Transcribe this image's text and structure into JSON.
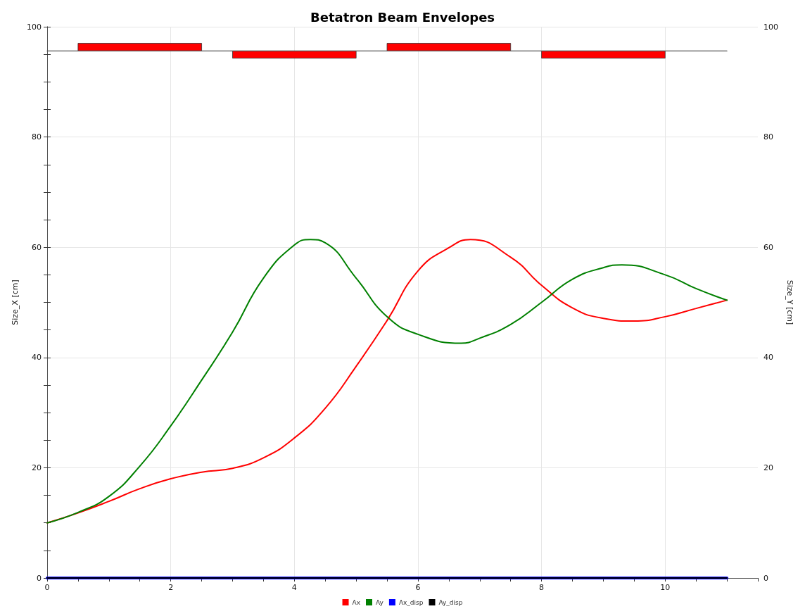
{
  "chart_data": {
    "type": "line",
    "title": "Betatron Beam Envelopes",
    "ylabel": "Size_X [cm]",
    "y2label": "Size_Y [cm]",
    "xlim": [
      0,
      11.5
    ],
    "xticks": [
      0,
      {
        "value": 0.5,
        "label": null
      },
      {
        "value": 1,
        "label": null
      },
      {
        "value": 1.5,
        "label": null
      },
      2,
      {
        "value": 2.5,
        "label": null
      },
      {
        "value": 3,
        "label": null
      },
      {
        "value": 3.5,
        "label": null
      },
      4,
      {
        "value": 4.5,
        "label": null
      },
      {
        "value": 5,
        "label": null
      },
      {
        "value": 5.5,
        "label": null
      },
      6,
      {
        "value": 6.5,
        "label": null
      },
      {
        "value": 7,
        "label": null
      },
      {
        "value": 7.5,
        "label": null
      },
      8,
      {
        "value": 8.5,
        "label": null
      },
      {
        "value": 9,
        "label": null
      },
      {
        "value": 9.5,
        "label": null
      },
      10,
      {
        "value": 10.5,
        "label": null
      },
      {
        "value": 11,
        "label": null
      },
      {
        "value": 11.5,
        "label": null
      }
    ],
    "ylim": [
      0,
      100
    ],
    "yticks": [
      0,
      {
        "value": 5,
        "label": null
      },
      {
        "value": 10,
        "label": null
      },
      {
        "value": 15,
        "label": null
      },
      20,
      {
        "value": 25,
        "label": null
      },
      {
        "value": 30,
        "label": null
      },
      {
        "value": 35,
        "label": null
      },
      40,
      {
        "value": 45,
        "label": null
      },
      {
        "value": 50,
        "label": null
      },
      {
        "value": 55,
        "label": null
      },
      60,
      {
        "value": 65,
        "label": null
      },
      {
        "value": 70,
        "label": null
      },
      {
        "value": 75,
        "label": null
      },
      80,
      {
        "value": 85,
        "label": null
      },
      {
        "value": 90,
        "label": null
      },
      {
        "value": 95,
        "label": null
      },
      100
    ],
    "y2lim": [
      0,
      100
    ],
    "y2ticks": [
      0,
      {
        "value": 5,
        "label": null
      },
      {
        "value": 10,
        "label": null
      },
      {
        "value": 15,
        "label": null
      },
      20,
      {
        "value": 25,
        "label": null
      },
      {
        "value": 30,
        "label": null
      },
      {
        "value": 35,
        "label": null
      },
      40,
      {
        "value": 45,
        "label": null
      },
      {
        "value": 50,
        "label": null
      },
      {
        "value": 55,
        "label": null
      },
      60,
      {
        "value": 65,
        "label": null
      },
      {
        "value": 70,
        "label": null
      },
      {
        "value": 75,
        "label": null
      },
      80,
      {
        "value": 85,
        "label": null
      },
      {
        "value": 90,
        "label": null
      },
      {
        "value": 95,
        "label": null
      },
      100
    ],
    "grid": true,
    "legend": "bottom",
    "marker": "none",
    "line_style": "solid",
    "series": [
      {
        "type": "bar",
        "color": "#ff0000",
        "x": [
          1.5,
          4,
          6.5,
          9
        ],
        "base": [
          95.6,
          94.3,
          95.6,
          94.3
        ],
        "values": [
          1.4,
          1.3,
          1.4,
          1.3
        ]
      },
      {
        "type": "line",
        "color": "#555555",
        "x": [
          0,
          11
        ],
        "values": [
          95.6,
          95.6
        ]
      },
      {
        "name": "Ax",
        "color": "#ff0000",
        "x": [
          0,
          0.5,
          1,
          1.5,
          2,
          2.5,
          3,
          3.5,
          4,
          4.5,
          5,
          5.5,
          6,
          6.5,
          6.85,
          7.5,
          8,
          8.5,
          9,
          9.5,
          10,
          10.5,
          11
        ],
        "values": [
          10,
          11.8,
          13.9,
          16.2,
          18,
          19.2,
          19.9,
          21.8,
          25.4,
          30.8,
          38.4,
          46.7,
          55.7,
          59.9,
          61.4,
          58.2,
          53.1,
          49,
          47.1,
          46.6,
          47.4,
          48.9,
          50.4
        ]
      },
      {
        "name": "Ay",
        "color": "#008000",
        "x": [
          0,
          0.5,
          1,
          1.5,
          2,
          2.5,
          3,
          3.5,
          4,
          4.26,
          4.5,
          5,
          5.5,
          6,
          6.7,
          7,
          7.5,
          8,
          8.5,
          9,
          9.3,
          10,
          10.5,
          11
        ],
        "values": [
          10,
          11.9,
          14.8,
          20.3,
          27.6,
          35.9,
          44.6,
          54.4,
          60.4,
          61.4,
          60.8,
          54.4,
          47.4,
          44.2,
          42.6,
          43.5,
          46,
          50,
          54.2,
          56.3,
          56.8,
          55,
          52.5,
          50.4
        ]
      },
      {
        "name": "Ax_disp",
        "color": "#0000ff",
        "x": [
          0,
          11
        ],
        "values": [
          0,
          0
        ]
      },
      {
        "name": "Ay_disp",
        "color": "#000000",
        "x": [
          0,
          11
        ],
        "values": [
          0,
          0
        ]
      }
    ]
  }
}
